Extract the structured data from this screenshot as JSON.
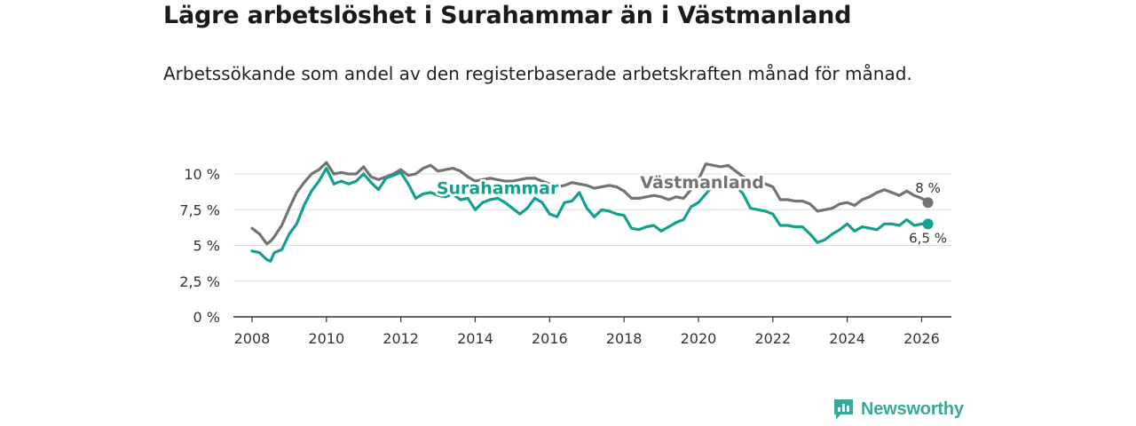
{
  "title": "Lägre arbetslöshet i Surahammar än i Västmanland",
  "subtitle": "Arbetssökande som andel av den registerbaserade arbetskraften månad för månad.",
  "brand": {
    "name": "Newsworthy",
    "logo_icon": "bar-chart-speech-bubble-icon"
  },
  "colors": {
    "surahammar": "#13a08f",
    "vastmanland": "#737373",
    "grid": "#dddddd",
    "axis": "#333333",
    "brand": "#3aa898"
  },
  "chart_data": {
    "type": "line",
    "title": "Lägre arbetslöshet i Surahammar än i Västmanland",
    "xlabel": "",
    "ylabel": "",
    "xlim": [
      2007.5,
      2026.8
    ],
    "ylim": [
      0,
      10
    ],
    "y_ticks": [
      0,
      2.5,
      5,
      7.5,
      10
    ],
    "y_tick_labels": [
      "0 %",
      "2,5 %",
      "5 %",
      "7,5 %",
      "10 %"
    ],
    "x_ticks": [
      2008,
      2010,
      2012,
      2014,
      2016,
      2018,
      2020,
      2022,
      2024,
      2026
    ],
    "x_tick_labels": [
      "2008",
      "2010",
      "2012",
      "2014",
      "2016",
      "2018",
      "2020",
      "2022",
      "2024",
      "2026"
    ],
    "grid": true,
    "series": [
      {
        "name": "Västmanland",
        "color": "#737373",
        "end_label": "8 %",
        "x": [
          2008.0,
          2008.2,
          2008.4,
          2008.5,
          2008.6,
          2008.8,
          2009.0,
          2009.2,
          2009.4,
          2009.6,
          2009.8,
          2010.0,
          2010.2,
          2010.4,
          2010.6,
          2010.8,
          2011.0,
          2011.2,
          2011.4,
          2011.6,
          2011.8,
          2012.0,
          2012.2,
          2012.4,
          2012.6,
          2012.8,
          2013.0,
          2013.2,
          2013.4,
          2013.6,
          2013.8,
          2014.0,
          2014.2,
          2014.4,
          2014.6,
          2014.8,
          2015.0,
          2015.2,
          2015.4,
          2015.6,
          2015.8,
          2016.0,
          2016.2,
          2016.4,
          2016.6,
          2016.8,
          2017.0,
          2017.2,
          2017.4,
          2017.6,
          2017.8,
          2018.0,
          2018.2,
          2018.4,
          2018.6,
          2018.8,
          2019.0,
          2019.2,
          2019.4,
          2019.6,
          2019.8,
          2020.0,
          2020.2,
          2020.4,
          2020.6,
          2020.8,
          2021.0,
          2021.2,
          2021.4,
          2021.6,
          2021.8,
          2022.0,
          2022.2,
          2022.4,
          2022.6,
          2022.8,
          2023.0,
          2023.2,
          2023.4,
          2023.6,
          2023.8,
          2024.0,
          2024.2,
          2024.4,
          2024.6,
          2024.8,
          2025.0,
          2025.2,
          2025.4,
          2025.6,
          2025.8,
          2026.0,
          2026.17
        ],
        "values": [
          6.2,
          5.8,
          5.1,
          5.3,
          5.6,
          6.4,
          7.6,
          8.7,
          9.4,
          10.0,
          10.3,
          10.8,
          10.0,
          10.1,
          10.0,
          10.0,
          10.5,
          9.8,
          9.6,
          9.8,
          10.0,
          10.3,
          9.9,
          10.0,
          10.4,
          10.6,
          10.2,
          10.3,
          10.4,
          10.2,
          9.8,
          9.5,
          9.6,
          9.7,
          9.6,
          9.5,
          9.5,
          9.6,
          9.7,
          9.7,
          9.5,
          9.3,
          9.1,
          9.2,
          9.4,
          9.3,
          9.2,
          9.0,
          9.1,
          9.2,
          9.1,
          8.8,
          8.3,
          8.3,
          8.4,
          8.5,
          8.4,
          8.2,
          8.4,
          8.3,
          8.9,
          9.6,
          10.7,
          10.6,
          10.5,
          10.6,
          10.2,
          9.8,
          9.6,
          9.5,
          9.3,
          9.1,
          8.2,
          8.2,
          8.1,
          8.1,
          7.9,
          7.4,
          7.5,
          7.6,
          7.9,
          8.0,
          7.8,
          8.2,
          8.4,
          8.7,
          8.9,
          8.7,
          8.5,
          8.8,
          8.5,
          8.3,
          8.0
        ]
      },
      {
        "name": "Surahammar",
        "color": "#13a08f",
        "end_label": "6,5 %",
        "x": [
          2008.0,
          2008.2,
          2008.4,
          2008.5,
          2008.6,
          2008.8,
          2009.0,
          2009.2,
          2009.4,
          2009.6,
          2009.8,
          2010.0,
          2010.2,
          2010.4,
          2010.6,
          2010.8,
          2011.0,
          2011.2,
          2011.4,
          2011.6,
          2011.8,
          2012.0,
          2012.2,
          2012.4,
          2012.6,
          2012.8,
          2013.0,
          2013.2,
          2013.4,
          2013.6,
          2013.8,
          2014.0,
          2014.2,
          2014.4,
          2014.6,
          2014.8,
          2015.0,
          2015.2,
          2015.4,
          2015.6,
          2015.8,
          2016.0,
          2016.2,
          2016.4,
          2016.6,
          2016.8,
          2017.0,
          2017.2,
          2017.4,
          2017.6,
          2017.8,
          2018.0,
          2018.2,
          2018.4,
          2018.6,
          2018.8,
          2019.0,
          2019.2,
          2019.4,
          2019.6,
          2019.8,
          2020.0,
          2020.2,
          2020.4,
          2020.6,
          2020.8,
          2021.0,
          2021.2,
          2021.4,
          2021.6,
          2021.8,
          2022.0,
          2022.2,
          2022.4,
          2022.6,
          2022.8,
          2023.0,
          2023.2,
          2023.4,
          2023.6,
          2023.8,
          2024.0,
          2024.2,
          2024.4,
          2024.6,
          2024.8,
          2025.0,
          2025.2,
          2025.4,
          2025.6,
          2025.8,
          2026.0,
          2026.17
        ],
        "values": [
          4.6,
          4.5,
          4.0,
          3.9,
          4.5,
          4.7,
          5.8,
          6.5,
          7.8,
          8.8,
          9.5,
          10.4,
          9.3,
          9.5,
          9.3,
          9.5,
          10.0,
          9.4,
          8.9,
          9.7,
          9.9,
          10.1,
          9.3,
          8.3,
          8.6,
          8.7,
          8.5,
          8.4,
          8.6,
          8.2,
          8.3,
          7.5,
          8.0,
          8.2,
          8.3,
          8.0,
          7.6,
          7.2,
          7.6,
          8.3,
          8.0,
          7.2,
          7.0,
          8.0,
          8.1,
          8.7,
          7.6,
          7.0,
          7.5,
          7.4,
          7.2,
          7.1,
          6.2,
          6.1,
          6.3,
          6.4,
          6.0,
          6.3,
          6.6,
          6.8,
          7.7,
          8.0,
          8.6,
          9.2,
          9.0,
          9.1,
          9.2,
          8.6,
          7.6,
          7.5,
          7.4,
          7.2,
          6.4,
          6.4,
          6.3,
          6.3,
          5.8,
          5.2,
          5.4,
          5.8,
          6.1,
          6.5,
          6.0,
          6.3,
          6.2,
          6.1,
          6.5,
          6.5,
          6.4,
          6.8,
          6.4,
          6.5,
          6.5
        ]
      }
    ],
    "annotations": [
      {
        "text": "Surahammar",
        "series": "Surahammar",
        "x": 2014.6,
        "y": 8.6
      },
      {
        "text": "Västmanland",
        "series": "Västmanland",
        "x": 2020.1,
        "y": 9.0
      }
    ]
  }
}
